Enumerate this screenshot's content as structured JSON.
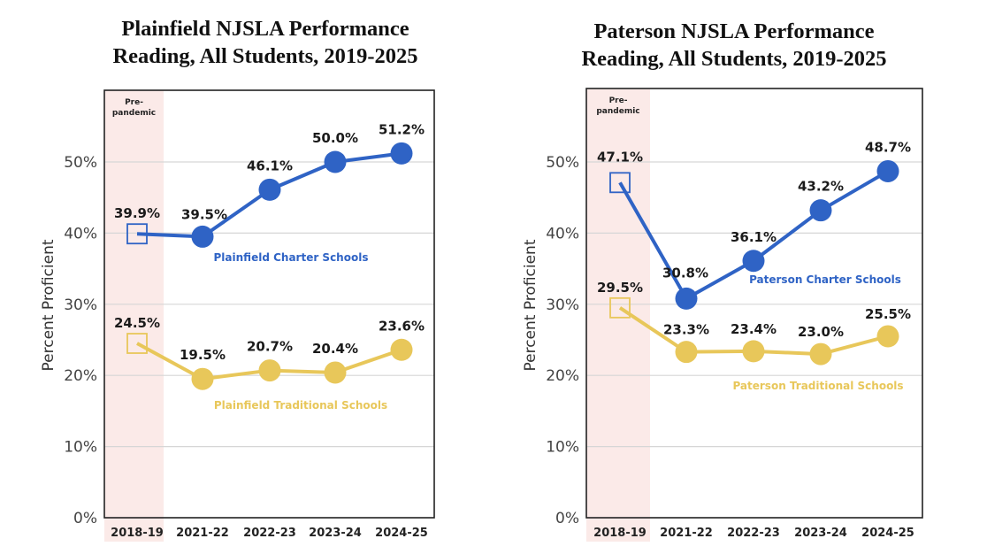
{
  "chart_data": [
    {
      "type": "line",
      "title": "Plainfield NJSLA Performance",
      "subtitle": "Reading, All Students, 2019-2025",
      "xlabel": "",
      "ylabel": "Percent Proficient",
      "ylim": [
        0,
        58
      ],
      "yticks": [
        0,
        10,
        20,
        30,
        40,
        50
      ],
      "ytick_labels": [
        "0%",
        "10%",
        "20%",
        "30%",
        "40%",
        "50%"
      ],
      "categories": [
        "2018-19",
        "2021-22",
        "2022-23",
        "2023-24",
        "2024-25"
      ],
      "grid": true,
      "highlight_band": {
        "category": "2018-19",
        "label": [
          "Pre-",
          "pandemic"
        ],
        "color": "#fbeae8"
      },
      "series": [
        {
          "name": "Plainfield Charter Schools",
          "color": "#2f63c5",
          "values": [
            39.9,
            39.5,
            46.1,
            50.0,
            51.2
          ],
          "labels": [
            "39.9%",
            "39.5%",
            "46.1%",
            "50.0%",
            "51.2%"
          ]
        },
        {
          "name": "Plainfield Traditional Schools",
          "color": "#e8c75a",
          "values": [
            24.5,
            19.5,
            20.7,
            20.4,
            23.6
          ],
          "labels": [
            "24.5%",
            "19.5%",
            "20.7%",
            "20.4%",
            "23.6%"
          ]
        }
      ]
    },
    {
      "type": "line",
      "title": "Paterson NJSLA Performance",
      "subtitle": "Reading, All Students, 2019-2025",
      "xlabel": "",
      "ylabel": "Percent Proficient",
      "ylim": [
        0,
        58
      ],
      "yticks": [
        0,
        10,
        20,
        30,
        40,
        50
      ],
      "ytick_labels": [
        "0%",
        "10%",
        "20%",
        "30%",
        "40%",
        "50%"
      ],
      "categories": [
        "2018-19",
        "2021-22",
        "2022-23",
        "2023-24",
        "2024-25"
      ],
      "grid": true,
      "highlight_band": {
        "category": "2018-19",
        "label": [
          "Pre-",
          "pandemic"
        ],
        "color": "#fbeae8"
      },
      "series": [
        {
          "name": "Paterson Charter Schools",
          "color": "#2f63c5",
          "values": [
            47.1,
            30.8,
            36.1,
            43.2,
            48.7
          ],
          "labels": [
            "47.1%",
            "30.8%",
            "36.1%",
            "43.2%",
            "48.7%"
          ]
        },
        {
          "name": "Paterson Traditional Schools",
          "color": "#e8c75a",
          "values": [
            29.5,
            23.3,
            23.4,
            23.0,
            25.5
          ],
          "labels": [
            "29.5%",
            "23.3%",
            "23.4%",
            "23.0%",
            "25.5%"
          ]
        }
      ]
    }
  ]
}
